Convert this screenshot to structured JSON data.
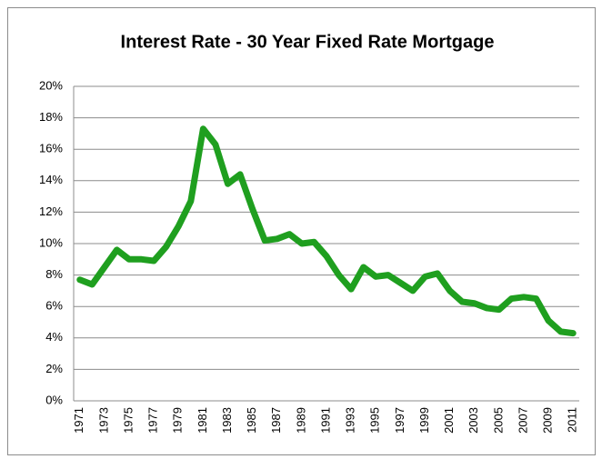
{
  "chart_data": {
    "type": "line",
    "title": "Interest Rate - 30 Year Fixed Rate Mortgage",
    "categories": [
      "1971",
      null,
      "1973",
      null,
      "1975",
      null,
      "1977",
      null,
      "1979",
      null,
      "1981",
      null,
      "1983",
      null,
      "1985",
      null,
      "1987",
      null,
      "1989",
      null,
      "1991",
      null,
      "1993",
      null,
      "1995",
      null,
      "1997",
      null,
      "1999",
      null,
      "2001",
      null,
      "2003",
      null,
      "2005",
      null,
      "2007",
      null,
      "2009",
      null,
      "2011"
    ],
    "values": [
      7.7,
      7.4,
      8.5,
      9.6,
      9.0,
      9.0,
      8.9,
      9.8,
      11.1,
      12.7,
      17.3,
      16.3,
      13.8,
      14.4,
      12.2,
      10.2,
      10.3,
      10.6,
      10.0,
      10.1,
      9.2,
      8.0,
      7.1,
      8.5,
      7.9,
      8.0,
      7.5,
      7.0,
      7.9,
      8.1,
      7.0,
      6.3,
      6.2,
      5.9,
      5.8,
      6.5,
      6.6,
      6.5,
      5.1,
      4.4,
      4.3
    ],
    "color": "#1f9f1f",
    "ylim": [
      0,
      20
    ],
    "yticks": [
      {
        "value": 0,
        "label": "0%"
      },
      {
        "value": 2,
        "label": "2%"
      },
      {
        "value": 4,
        "label": "4%"
      },
      {
        "value": 6,
        "label": "6%"
      },
      {
        "value": 8,
        "label": "8%"
      },
      {
        "value": 10,
        "label": "10%"
      },
      {
        "value": 12,
        "label": "12%"
      },
      {
        "value": 14,
        "label": "14%"
      },
      {
        "value": 16,
        "label": "16%"
      },
      {
        "value": 18,
        "label": "18%"
      },
      {
        "value": 20,
        "label": "20%"
      }
    ],
    "grid": true
  }
}
